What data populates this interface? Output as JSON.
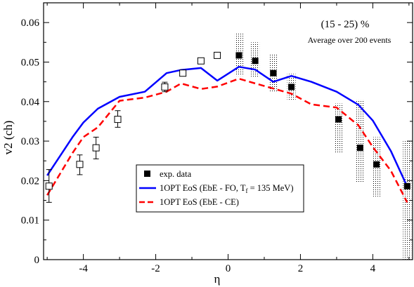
{
  "chart_data": {
    "type": "line",
    "xlabel": "η",
    "ylabel": "v2 (ch)",
    "xlim": [
      -5.1,
      5.1
    ],
    "ylim": [
      0,
      0.065
    ],
    "x_ticks": [
      -4,
      -2,
      0,
      2,
      4
    ],
    "x_tick_labels": [
      "-4",
      "-2",
      "0",
      "2",
      "4"
    ],
    "y_ticks": [
      0,
      0.01,
      0.02,
      0.03,
      0.04,
      0.05,
      0.06
    ],
    "y_tick_labels": [
      "0",
      "0.01",
      "0.02",
      "0.03",
      "0.04",
      "0.05",
      "0.06"
    ],
    "annotations": [
      "(15 - 25) %",
      "Average over 200 events"
    ],
    "legend": {
      "placement": "center-bottom",
      "entries": [
        {
          "label": "exp. data",
          "style": "filled-square"
        },
        {
          "label": "1OPT EoS (EbE - FO, T",
          "sub": "f",
          "suffix": " = 135 MeV)",
          "style": "solid",
          "color": "#0000ff"
        },
        {
          "label": "1OPT EoS (EbE - CE)",
          "style": "dashed",
          "color": "#ff0000"
        }
      ]
    },
    "series": [
      {
        "kind": "points",
        "marker": "filled-square",
        "points": [
          {
            "x": 0.3,
            "y": 0.0517,
            "ylo": 0.0465,
            "yhi": 0.0575
          },
          {
            "x": 0.75,
            "y": 0.0503,
            "ylo": 0.046,
            "yhi": 0.055
          },
          {
            "x": 1.25,
            "y": 0.0472,
            "ylo": 0.0425,
            "yhi": 0.052
          },
          {
            "x": 1.75,
            "y": 0.0437,
            "ylo": 0.0405,
            "yhi": 0.047
          },
          {
            "x": 3.05,
            "y": 0.0355,
            "ylo": 0.027,
            "yhi": 0.0395
          },
          {
            "x": 3.65,
            "y": 0.0283,
            "ylo": 0.0195,
            "yhi": 0.0405
          },
          {
            "x": 4.1,
            "y": 0.0241,
            "ylo": 0.016,
            "yhi": 0.031
          },
          {
            "x": 4.95,
            "y": 0.0186,
            "ylo": 0.0,
            "yhi": 0.03
          }
        ]
      },
      {
        "kind": "points",
        "marker": "open-square",
        "points": [
          {
            "x": -4.95,
            "y": 0.0186,
            "ylo": 0.0145,
            "yhi": 0.0228
          },
          {
            "x": -4.1,
            "y": 0.0241,
            "ylo": 0.0215,
            "yhi": 0.0265
          },
          {
            "x": -3.65,
            "y": 0.0283,
            "ylo": 0.0255,
            "yhi": 0.031
          },
          {
            "x": -3.05,
            "y": 0.0355,
            "ylo": 0.0335,
            "yhi": 0.0377
          },
          {
            "x": -1.75,
            "y": 0.0437,
            "ylo": 0.0425,
            "yhi": 0.0449
          },
          {
            "x": -1.25,
            "y": 0.0472,
            "ylo": 0.0466,
            "yhi": 0.0478
          },
          {
            "x": -0.75,
            "y": 0.0503,
            "ylo": 0.0498,
            "yhi": 0.0508
          },
          {
            "x": -0.3,
            "y": 0.0517,
            "ylo": 0.0512,
            "yhi": 0.0522
          }
        ]
      },
      {
        "kind": "line",
        "name": "1OPT EoS (EbE - FO, T f = 135 MeV)",
        "color": "#0000ff",
        "x": [
          -5.0,
          -4.3,
          -4.0,
          -3.6,
          -3.0,
          -2.3,
          -1.7,
          -1.3,
          -0.75,
          -0.3,
          0.3,
          0.75,
          1.25,
          1.75,
          2.3,
          3.0,
          3.6,
          4.0,
          4.5,
          4.95
        ],
        "y": [
          0.0213,
          0.031,
          0.0347,
          0.0382,
          0.0412,
          0.0425,
          0.0472,
          0.048,
          0.0485,
          0.0453,
          0.0488,
          0.0481,
          0.045,
          0.0465,
          0.045,
          0.0425,
          0.0392,
          0.0352,
          0.0275,
          0.0185
        ]
      },
      {
        "kind": "line",
        "name": "1OPT EoS (EbE - CE)",
        "color": "#ff0000",
        "dashed": true,
        "x": [
          -5.0,
          -4.3,
          -4.0,
          -3.6,
          -3.0,
          -2.3,
          -1.7,
          -1.3,
          -0.75,
          -0.3,
          0.3,
          0.75,
          1.25,
          1.75,
          2.3,
          3.0,
          3.6,
          4.0,
          4.5,
          4.95
        ],
        "y": [
          0.0163,
          0.027,
          0.031,
          0.0335,
          0.0402,
          0.041,
          0.0425,
          0.0446,
          0.0432,
          0.0438,
          0.0458,
          0.0446,
          0.0433,
          0.042,
          0.0393,
          0.0385,
          0.034,
          0.0285,
          0.0225,
          0.0145
        ]
      }
    ]
  }
}
